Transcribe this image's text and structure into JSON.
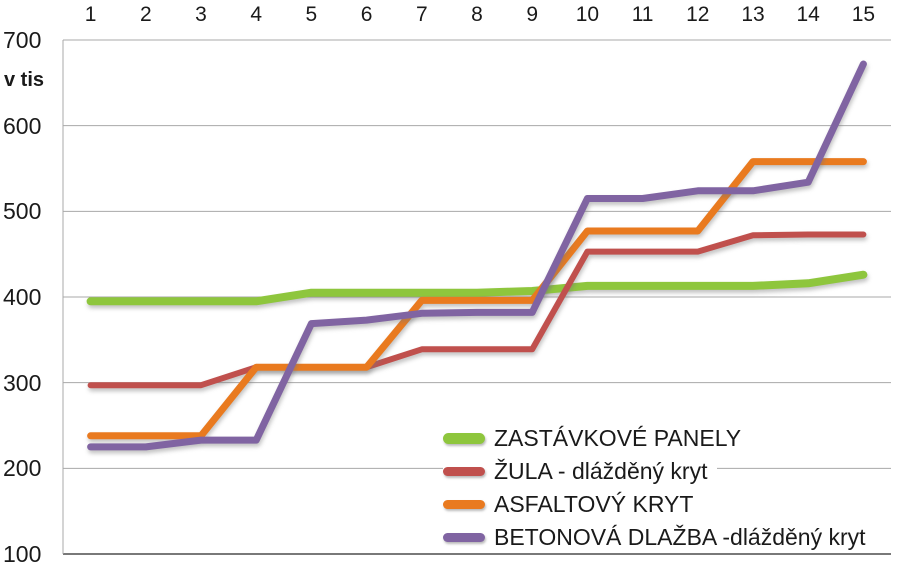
{
  "y_axis_title": "v tis",
  "chart_data": {
    "type": "line",
    "title": "",
    "x": [
      1,
      2,
      3,
      4,
      5,
      6,
      7,
      8,
      9,
      10,
      11,
      12,
      13,
      14,
      15
    ],
    "x_axis_position": "top",
    "y_axis": {
      "min": 100,
      "max": 700,
      "step": 100,
      "ticks": [
        700,
        600,
        500,
        400,
        300,
        200,
        100
      ]
    },
    "grid": true,
    "legend_position": "inside-bottom-right",
    "colors": {
      "gridline": "#a8a8a8",
      "axis_line": "#4d4d4d",
      "text": "#1a1a1a"
    },
    "series": [
      {
        "name": "ZASTÁVKOVÉ PANELY",
        "color": "#8EC63D",
        "stroke_width": 8,
        "values": [
          395,
          395,
          395,
          395,
          405,
          405,
          405,
          405,
          407,
          413,
          413,
          413,
          413,
          416,
          426
        ]
      },
      {
        "name": "ŽULA - dlážděný kryt",
        "color": "#C0504D",
        "stroke_width": 6,
        "values": [
          297,
          297,
          297,
          318,
          318,
          318,
          339,
          339,
          339,
          453,
          453,
          453,
          472,
          473,
          473
        ]
      },
      {
        "name": "ASFALTOVÝ KRYT",
        "color": "#E97A1F",
        "stroke_width": 7,
        "values": [
          238,
          238,
          238,
          318,
          318,
          318,
          396,
          396,
          396,
          477,
          477,
          477,
          558,
          558,
          558
        ]
      },
      {
        "name": "BETONOVÁ DLAŽBA -dlážděný kryt",
        "color": "#8064A2",
        "stroke_width": 7,
        "values": [
          225,
          225,
          233,
          233,
          369,
          373,
          381,
          382,
          382,
          515,
          515,
          524,
          524,
          534,
          672
        ]
      }
    ]
  }
}
